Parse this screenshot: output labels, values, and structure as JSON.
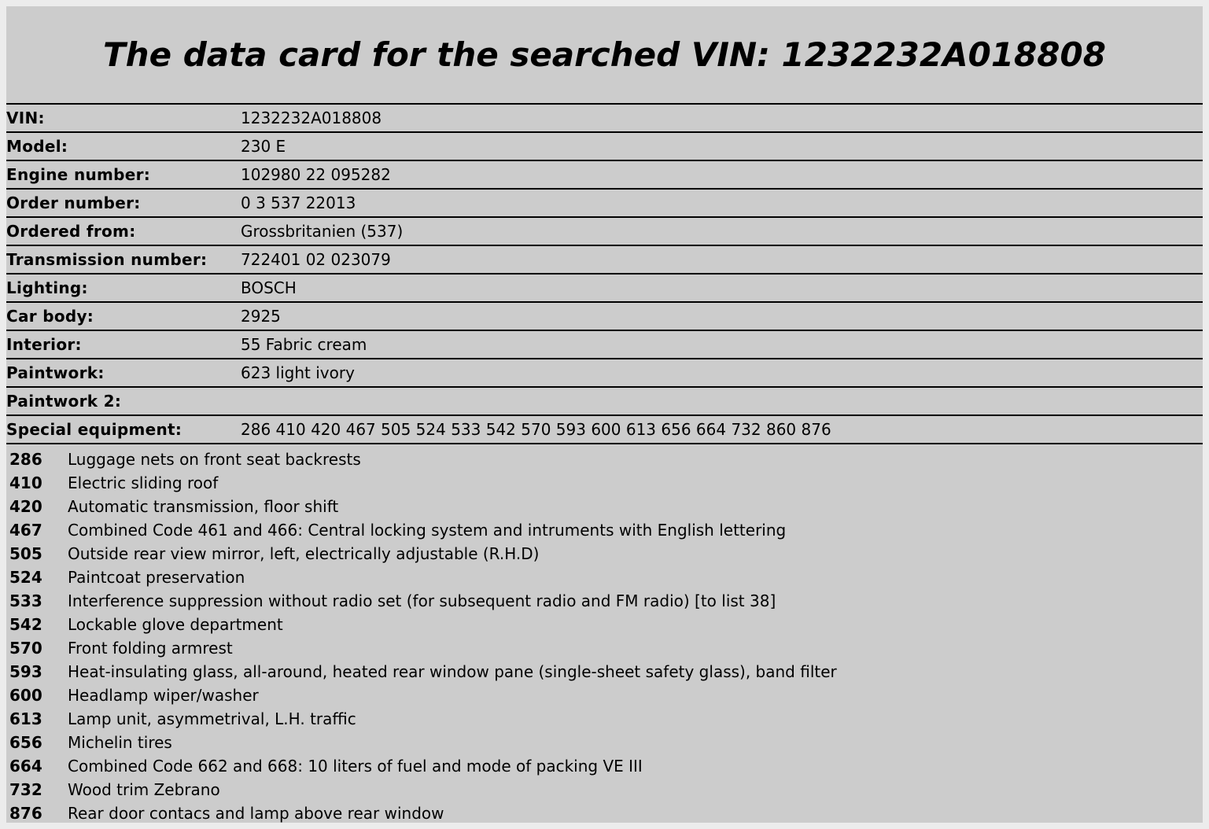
{
  "page": {
    "title": "The data card for the searched VIN: 1232232A018808"
  },
  "data_card": {
    "rows": [
      {
        "label": "VIN:",
        "value": "1232232A018808"
      },
      {
        "label": "Model:",
        "value": "230 E"
      },
      {
        "label": "Engine number:",
        "value": "102980 22 095282"
      },
      {
        "label": "Order number:",
        "value": "0 3 537 22013"
      },
      {
        "label": "Ordered from:",
        "value": "Grossbritanien (537)"
      },
      {
        "label": "Transmission number:",
        "value": "722401 02 023079"
      },
      {
        "label": "Lighting:",
        "value": "BOSCH"
      },
      {
        "label": "Car body:",
        "value": "2925"
      },
      {
        "label": "Interior:",
        "value": "55 Fabric cream"
      },
      {
        "label": "Paintwork:",
        "value": "623 light ivory"
      },
      {
        "label": "Paintwork 2:",
        "value": ""
      },
      {
        "label": "Special equipment:",
        "value": "286 410 420 467 505 524 533 542 570 593 600 613 656 664 732 860 876"
      }
    ]
  },
  "equipment_list": {
    "items": [
      {
        "code": "286",
        "description": "Luggage nets on front seat backrests"
      },
      {
        "code": "410",
        "description": "Electric sliding roof"
      },
      {
        "code": "420",
        "description": "Automatic transmission, floor shift"
      },
      {
        "code": "467",
        "description": "Combined Code 461 and 466: Central locking system and intruments with English lettering"
      },
      {
        "code": "505",
        "description": "Outside rear view mirror, left, electrically adjustable (R.H.D)"
      },
      {
        "code": "524",
        "description": "Paintcoat preservation"
      },
      {
        "code": "533",
        "description": "Interference suppression without radio set (for subsequent radio and FM radio) [to list 38]"
      },
      {
        "code": "542",
        "description": "Lockable glove department"
      },
      {
        "code": "570",
        "description": "Front folding armrest"
      },
      {
        "code": "593",
        "description": "Heat-insulating glass, all-around, heated rear window pane (single-sheet safety glass), band filter"
      },
      {
        "code": "600",
        "description": "Headlamp wiper/washer"
      },
      {
        "code": "613",
        "description": "Lamp unit, asymmetrival, L.H. traffic"
      },
      {
        "code": "656",
        "description": "Michelin tires"
      },
      {
        "code": "664",
        "description": "Combined Code 662 and 668: 10 liters of fuel and mode of packing VE III"
      },
      {
        "code": "732",
        "description": "Wood trim Zebrano"
      },
      {
        "code": "876",
        "description": "Rear door contacs and lamp above rear window"
      }
    ]
  },
  "colors": {
    "page_background": "#cccccc",
    "page_margin": "#ececec",
    "text": "#000000",
    "border": "#000000"
  }
}
